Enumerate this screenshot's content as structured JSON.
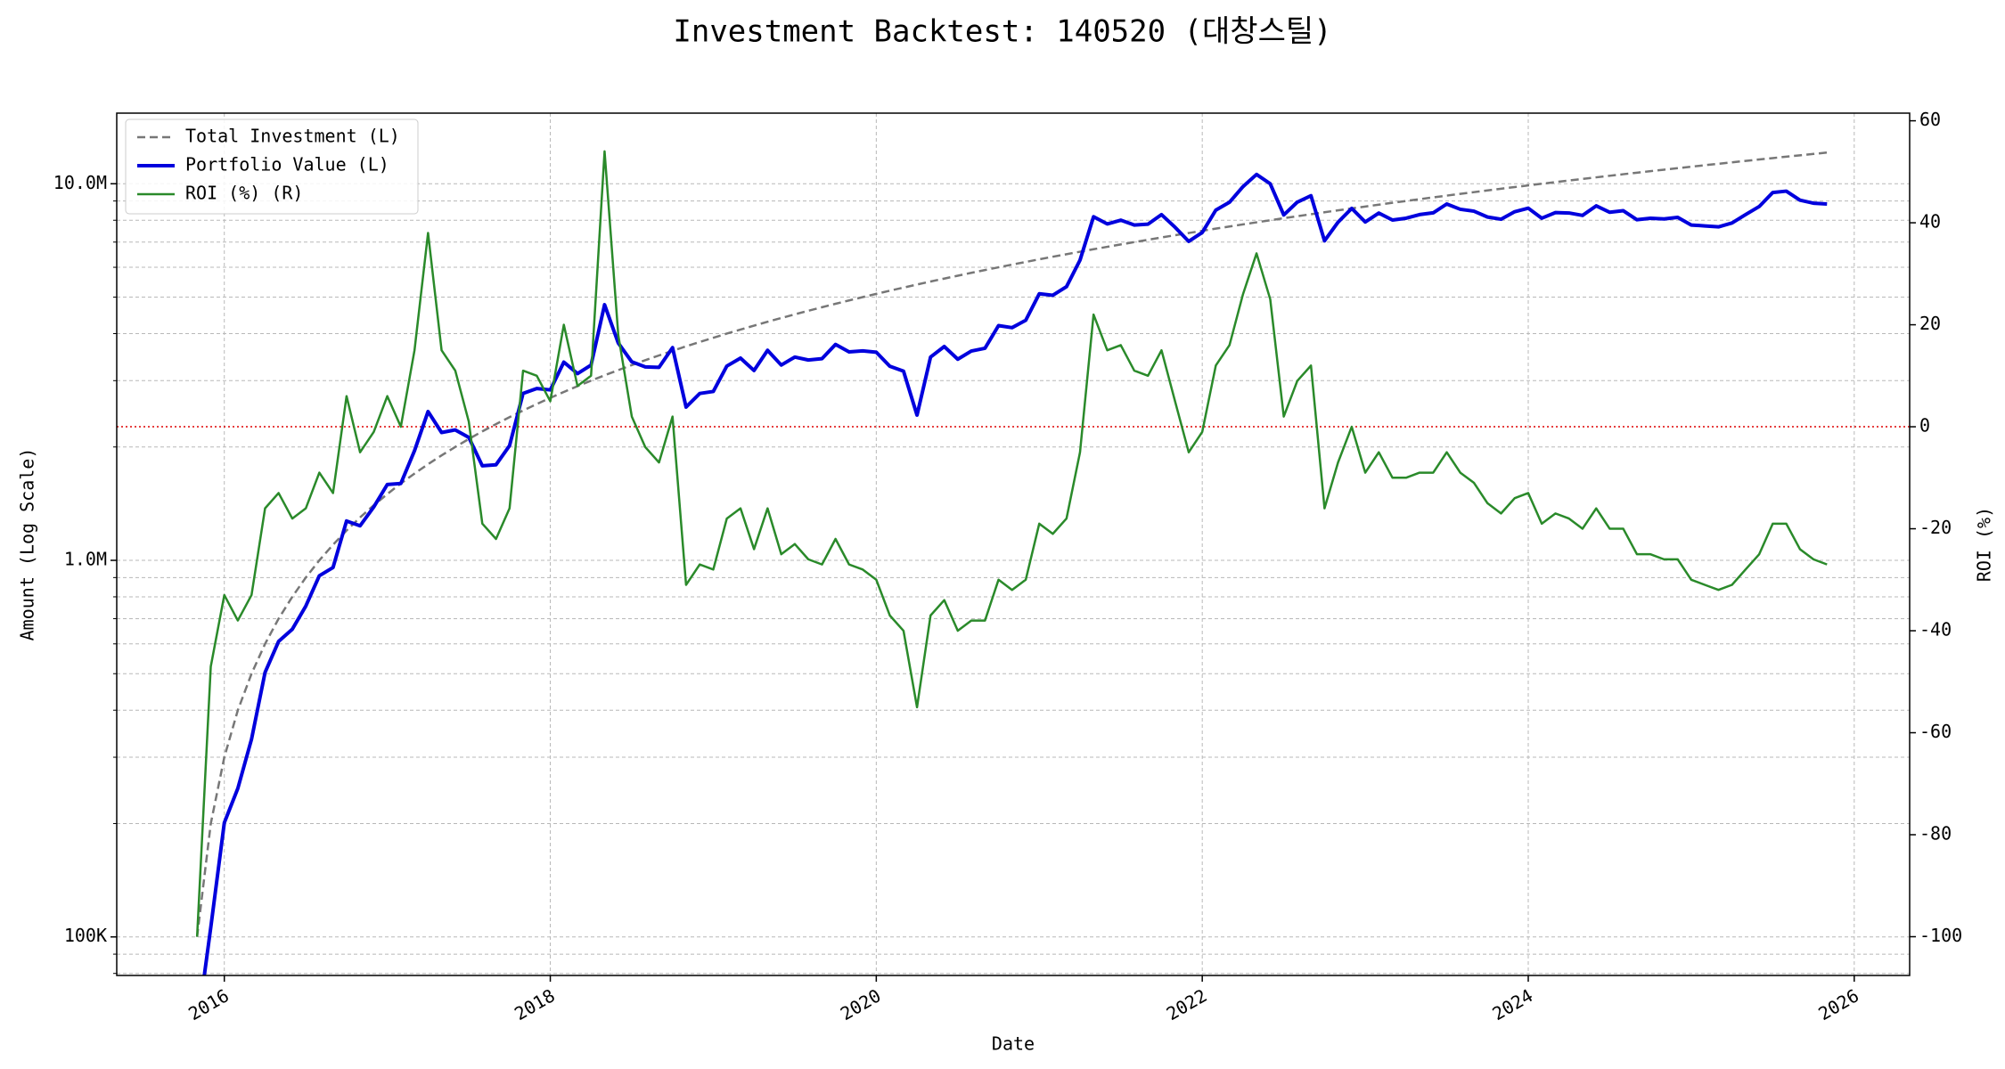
{
  "chart_data": {
    "type": "line",
    "title": "Investment Backtest: 140520 (대창스틸)",
    "xlabel": "Date",
    "ylabel": "Amount (Log Scale)",
    "y2label": "ROI (%)",
    "ylabel_color": "#0000cc",
    "y2label_color": "#228b22",
    "yscale": "log",
    "grid": true,
    "legend": "upper left",
    "xlim": [
      2015.34,
      2026.34
    ],
    "xticks": [
      2016,
      2018,
      2020,
      2022,
      2024,
      2026
    ],
    "ylim": [
      79000,
      15400000
    ],
    "yticks": [
      {
        "value": 100000,
        "label": "100K"
      },
      {
        "value": 1000000,
        "label": "1.0M"
      },
      {
        "value": 10000000,
        "label": "10.0M"
      }
    ],
    "yminorticks": [
      80000,
      90000,
      200000,
      300000,
      400000,
      500000,
      600000,
      700000,
      800000,
      900000,
      2000000,
      3000000,
      4000000,
      5000000,
      6000000,
      7000000,
      8000000,
      9000000
    ],
    "y2lim": [
      -107.6,
      61.5
    ],
    "y2ticks": [
      -100,
      -80,
      -60,
      -40,
      -20,
      0,
      20,
      40,
      60
    ],
    "reference_line": {
      "axis": "y2",
      "value": 0,
      "color": "#dd0000"
    },
    "x": [
      2015.833,
      2015.917,
      2016,
      2016.083,
      2016.167,
      2016.25,
      2016.333,
      2016.417,
      2016.5,
      2016.583,
      2016.667,
      2016.75,
      2016.833,
      2016.917,
      2017,
      2017.083,
      2017.167,
      2017.25,
      2017.333,
      2017.417,
      2017.5,
      2017.583,
      2017.667,
      2017.75,
      2017.833,
      2017.917,
      2018,
      2018.083,
      2018.167,
      2018.25,
      2018.333,
      2018.417,
      2018.5,
      2018.583,
      2018.667,
      2018.75,
      2018.833,
      2018.917,
      2019,
      2019.083,
      2019.167,
      2019.25,
      2019.333,
      2019.417,
      2019.5,
      2019.583,
      2019.667,
      2019.75,
      2019.833,
      2019.917,
      2020,
      2020.083,
      2020.167,
      2020.25,
      2020.333,
      2020.417,
      2020.5,
      2020.583,
      2020.667,
      2020.75,
      2020.833,
      2020.917,
      2021,
      2021.083,
      2021.167,
      2021.25,
      2021.333,
      2021.417,
      2021.5,
      2021.583,
      2021.667,
      2021.75,
      2021.833,
      2021.917,
      2022,
      2022.083,
      2022.167,
      2022.25,
      2022.333,
      2022.417,
      2022.5,
      2022.583,
      2022.667,
      2022.75,
      2022.833,
      2022.917,
      2023,
      2023.083,
      2023.167,
      2023.25,
      2023.333,
      2023.417,
      2023.5,
      2023.583,
      2023.667,
      2023.75,
      2023.833,
      2023.917,
      2024,
      2024.083,
      2024.167,
      2024.25,
      2024.333,
      2024.417,
      2024.5,
      2024.583,
      2024.667,
      2024.75,
      2024.833,
      2024.917,
      2025,
      2025.083,
      2025.167,
      2025.25,
      2025.333,
      2025.417,
      2025.5,
      2025.583,
      2025.667,
      2025.75,
      2025.833
    ],
    "series": [
      {
        "name": "Total Investment (L)",
        "color": "#777777",
        "dashed": true,
        "width": 2.5,
        "values": [
          100000,
          200000,
          300000,
          400000,
          500000,
          600000,
          700000,
          800000,
          900000,
          1000000,
          1100000,
          1200000,
          1300000,
          1400000,
          1500000,
          1600000,
          1700000,
          1800000,
          1900000,
          2000000,
          2100000,
          2200000,
          2300000,
          2400000,
          2500000,
          2600000,
          2700000,
          2800000,
          2900000,
          3000000,
          3100000,
          3200000,
          3300000,
          3400000,
          3500000,
          3600000,
          3700000,
          3800000,
          3900000,
          4000000,
          4100000,
          4200000,
          4300000,
          4400000,
          4500000,
          4600000,
          4700000,
          4800000,
          4900000,
          5000000,
          5100000,
          5200000,
          5300000,
          5400000,
          5500000,
          5600000,
          5700000,
          5800000,
          5900000,
          6000000,
          6100000,
          6200000,
          6300000,
          6400000,
          6500000,
          6600000,
          6700000,
          6800000,
          6900000,
          7000000,
          7100000,
          7200000,
          7300000,
          7400000,
          7500000,
          7600000,
          7700000,
          7800000,
          7900000,
          8000000,
          8100000,
          8200000,
          8300000,
          8400000,
          8500000,
          8600000,
          8700000,
          8800000,
          8900000,
          9000000,
          9100000,
          9200000,
          9300000,
          9400000,
          9500000,
          9600000,
          9700000,
          9800000,
          9900000,
          10000000,
          10100000,
          10200000,
          10300000,
          10400000,
          10500000,
          10600000,
          10700000,
          10800000,
          10900000,
          11000000,
          11100000,
          11200000,
          11300000,
          11400000,
          11500000,
          11600000,
          11700000,
          11800000,
          11900000,
          12000000,
          12100000
        ]
      },
      {
        "name": "Portfolio Value (L)",
        "color": "#0000dd",
        "width": 4,
        "values": [
          0,
          106000,
          201000,
          248000,
          335000,
          504000,
          609000,
          656000,
          756000,
          910000,
          957000,
          1272000,
          1235000,
          1386000,
          1590000,
          1600000,
          1955000,
          2484000,
          2185000,
          2220000,
          2121000,
          1782000,
          1794000,
          2016000,
          2775000,
          2860000,
          2835000,
          3360000,
          3132000,
          3300000,
          4774000,
          3776000,
          3366000,
          3264000,
          3255000,
          3672000,
          2553000,
          2774000,
          2808000,
          3280000,
          3444000,
          3192000,
          3612000,
          3300000,
          3465000,
          3404000,
          3431000,
          3744000,
          3577000,
          3600000,
          3570000,
          3276000,
          3180000,
          2430000,
          3465000,
          3696000,
          3420000,
          3596000,
          3658000,
          4200000,
          4148000,
          4340000,
          5103000,
          5056000,
          5330000,
          6270000,
          8174000,
          7820000,
          8004000,
          7770000,
          7810000,
          8280000,
          7665000,
          7030000,
          7425000,
          8512000,
          8932000,
          9828000,
          10586000,
          10000000,
          8262000,
          8938000,
          9296000,
          7056000,
          7905000,
          8600000,
          7917000,
          8360000,
          8010000,
          8100000,
          8281000,
          8372000,
          8835000,
          8554000,
          8455000,
          8160000,
          8051000,
          8428000,
          8613000,
          8100000,
          8383000,
          8364000,
          8240000,
          8736000,
          8400000,
          8480000,
          8025000,
          8100000,
          8066000,
          8140000,
          7770000,
          7728000,
          7684000,
          7866000,
          8280000,
          8700000,
          9477000,
          9558000,
          9044000,
          8880000,
          8833000
        ]
      },
      {
        "name": "ROI (%) (R)",
        "color": "#2a8a2a",
        "width": 2.5,
        "axis": "y2",
        "values": [
          -100,
          -47,
          -33,
          -38,
          -33,
          -16,
          -13,
          -18,
          -16,
          -9,
          -13,
          6,
          -5,
          -1,
          6,
          0,
          15,
          38,
          15,
          11,
          1,
          -19,
          -22,
          -16,
          11,
          10,
          5,
          20,
          8,
          10,
          54,
          18,
          2,
          -4,
          -7,
          2,
          -31,
          -27,
          -28,
          -18,
          -16,
          -24,
          -16,
          -25,
          -23,
          -26,
          -27,
          -22,
          -27,
          -28,
          -30,
          -37,
          -40,
          -55,
          -37,
          -34,
          -40,
          -38,
          -38,
          -30,
          -32,
          -30,
          -19,
          -21,
          -18,
          -5,
          22,
          15,
          16,
          11,
          10,
          15,
          5,
          -5,
          -1,
          12,
          16,
          26,
          34,
          25,
          2,
          9,
          12,
          -16,
          -7,
          0,
          -9,
          -5,
          -10,
          -10,
          -9,
          -9,
          -5,
          -9,
          -11,
          -15,
          -17,
          -14,
          -13,
          -19,
          -17,
          -18,
          -20,
          -16,
          -20,
          -20,
          -25,
          -25,
          -26,
          -26,
          -30,
          -31,
          -32,
          -31,
          -28,
          -25,
          -19,
          -19,
          -24,
          -26,
          -27
        ]
      }
    ]
  }
}
